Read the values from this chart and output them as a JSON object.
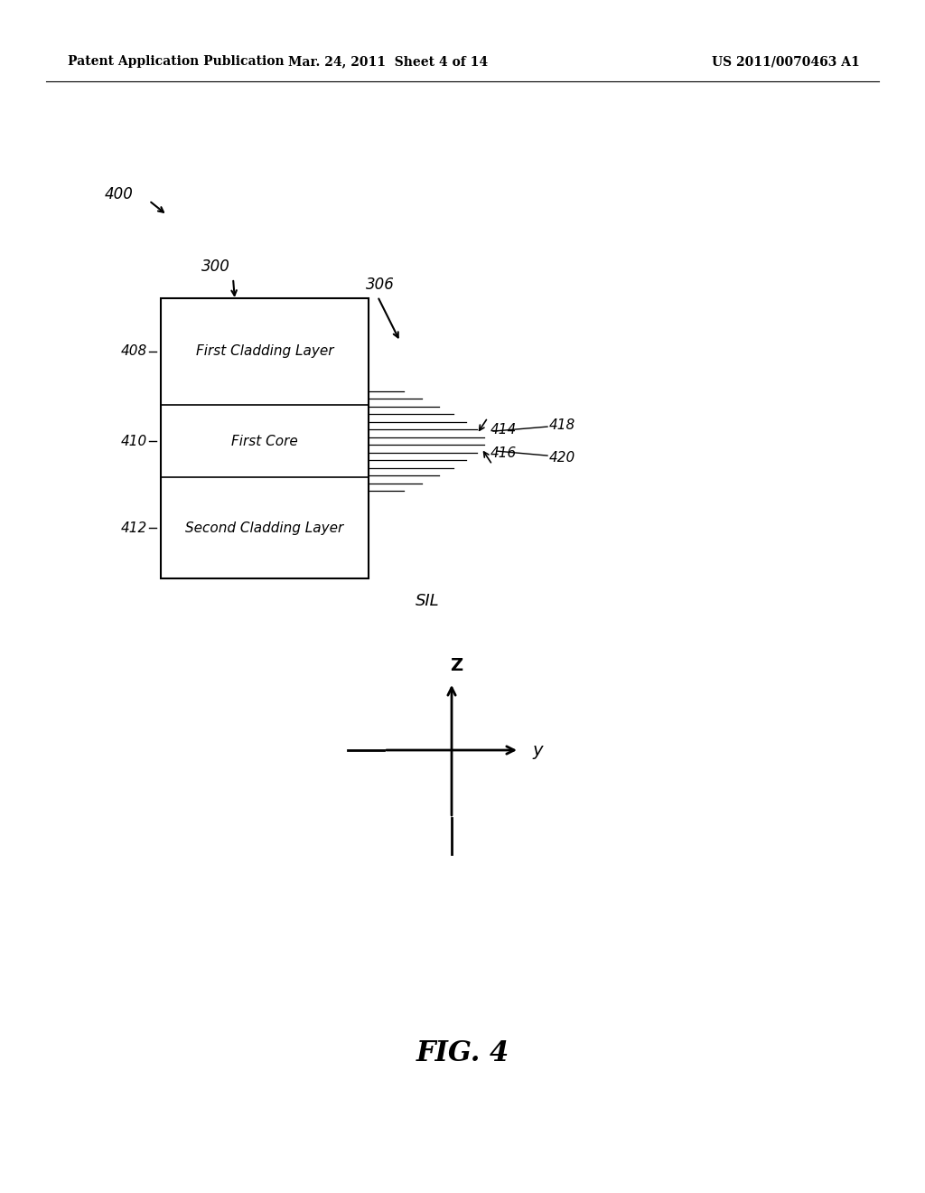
{
  "bg_color": "#ffffff",
  "header_left": "Patent Application Publication",
  "header_mid": "Mar. 24, 2011  Sheet 4 of 14",
  "header_right": "US 2011/0070463 A1",
  "fig_label": "FIG. 4",
  "label_400": "400",
  "label_300": "300",
  "label_306": "306",
  "label_408": "408",
  "label_410": "410",
  "label_412": "412",
  "label_414": "414",
  "label_416": "416",
  "label_418": "418",
  "label_420": "420",
  "label_sil": "SIL",
  "text_first_cladding": "First Cladding Layer",
  "text_first_core": "First Core",
  "text_second_cladding": "Second Cladding Layer",
  "axis_z": "Z",
  "axis_y": "y"
}
